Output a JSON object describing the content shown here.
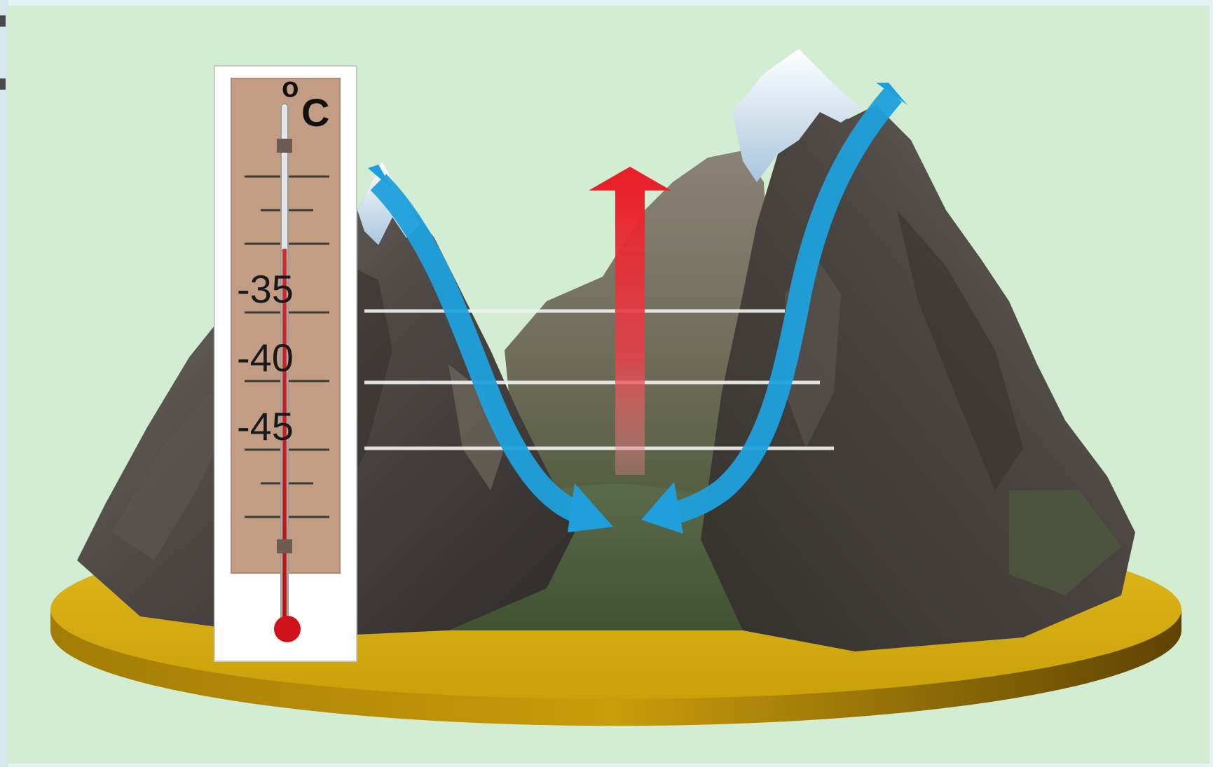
{
  "thermometer": {
    "unit": "C",
    "degree_symbol": "o",
    "scale_labels": [
      "-35",
      "-40",
      "-45"
    ],
    "level_fraction": 0.72
  },
  "arrows": {
    "cold_air": "blue-arrow-icon",
    "warm_air": "red-arrow-icon"
  },
  "colors": {
    "background": "#d3edd2",
    "cold_air_arrow": "#1fa0dc",
    "warm_air_arrow": "#e8202a",
    "thermometer_face": "#c29d83",
    "base_disc": "#d4a80e",
    "mountain_rock": "#4f4a47"
  }
}
